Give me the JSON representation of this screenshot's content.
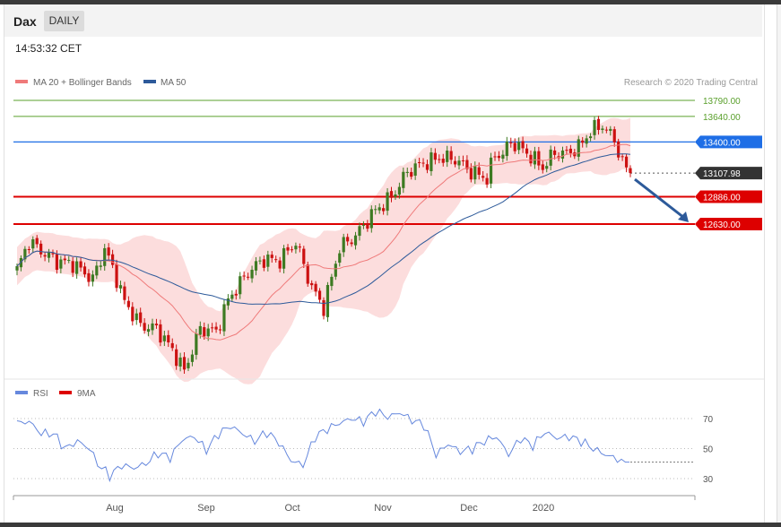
{
  "header": {
    "title": "Dax",
    "period": "DAILY",
    "time": "14:53:32 CET"
  },
  "colors": {
    "resistance_green": "#5aa02c",
    "pivot_blue": "#1e6ee6",
    "support_red": "#dd0000",
    "current_dark": "#333333",
    "candle_up": "#3d7a22",
    "candle_down": "#cc1111",
    "bollinger_fill": "#fcd7d7",
    "ma20": "#ef7a7a",
    "ma50": "#2d5a9a",
    "rsi": "#6688dd",
    "arrow": "#2d5a9a"
  },
  "legend": {
    "ma20": "MA 20 + Bollinger Bands",
    "ma50": "MA 50",
    "rsi": "RSI",
    "rsi_ma": "9MA",
    "credit": "Research © 2020 Trading Central"
  },
  "chart_data": [
    {
      "type": "candlestick",
      "x_labels": [
        "Aug",
        "Sep",
        "Oct",
        "Nov",
        "Dec",
        "2020"
      ],
      "ylim": [
        11100,
        14000
      ],
      "levels": [
        {
          "value": 13790,
          "label": "13790.00",
          "kind": "resistance"
        },
        {
          "value": 13640,
          "label": "13640.00",
          "kind": "resistance"
        },
        {
          "value": 13400,
          "label": "13400.00",
          "kind": "pivot"
        },
        {
          "value": 13107.98,
          "label": "13107.98",
          "kind": "current"
        },
        {
          "value": 12886,
          "label": "12886.00",
          "kind": "support"
        },
        {
          "value": 12630,
          "label": "12630.00",
          "kind": "support"
        }
      ],
      "close_profile": [
        [
          0,
          12200
        ],
        [
          3,
          12470
        ],
        [
          6,
          12380
        ],
        [
          10,
          12280
        ],
        [
          14,
          12260
        ],
        [
          19,
          12110
        ],
        [
          22,
          12400
        ],
        [
          25,
          12120
        ],
        [
          27,
          11900
        ],
        [
          31,
          11680
        ],
        [
          35,
          11650
        ],
        [
          39,
          11450
        ],
        [
          42,
          11250
        ],
        [
          46,
          11650
        ],
        [
          50,
          11620
        ],
        [
          53,
          11920
        ],
        [
          58,
          12180
        ],
        [
          62,
          12300
        ],
        [
          66,
          12290
        ],
        [
          70,
          12460
        ],
        [
          74,
          12030
        ],
        [
          77,
          11850
        ],
        [
          81,
          12410
        ],
        [
          85,
          12520
        ],
        [
          90,
          12760
        ],
        [
          94,
          12880
        ],
        [
          98,
          13120
        ],
        [
          102,
          13200
        ],
        [
          106,
          13250
        ],
        [
          110,
          13240
        ],
        [
          114,
          13120
        ],
        [
          118,
          13060
        ],
        [
          120,
          13280
        ],
        [
          122,
          13290
        ],
        [
          124,
          13400
        ],
        [
          128,
          13300
        ],
        [
          132,
          13160
        ],
        [
          135,
          13300
        ],
        [
          138,
          13290
        ],
        [
          141,
          13350
        ],
        [
          144,
          13500
        ],
        [
          147,
          13560
        ],
        [
          150,
          13420
        ],
        [
          152,
          13200
        ],
        [
          154,
          13108
        ]
      ],
      "arrow": {
        "from": 13050,
        "to": 12630
      }
    },
    {
      "type": "line",
      "name": "RSI",
      "ylim": [
        25,
        80
      ],
      "ticks": [
        30,
        50,
        70
      ],
      "points": [
        [
          0,
          67
        ],
        [
          3,
          68
        ],
        [
          6,
          60
        ],
        [
          9,
          60
        ],
        [
          12,
          50
        ],
        [
          15,
          55
        ],
        [
          18,
          50
        ],
        [
          20,
          40
        ],
        [
          23,
          32
        ],
        [
          26,
          39
        ],
        [
          29,
          37
        ],
        [
          32,
          40
        ],
        [
          35,
          47
        ],
        [
          38,
          44
        ],
        [
          41,
          56
        ],
        [
          44,
          58
        ],
        [
          47,
          49
        ],
        [
          50,
          60
        ],
        [
          53,
          65
        ],
        [
          56,
          60
        ],
        [
          59,
          55
        ],
        [
          62,
          61
        ],
        [
          65,
          54
        ],
        [
          68,
          42
        ],
        [
          71,
          39
        ],
        [
          74,
          58
        ],
        [
          77,
          63
        ],
        [
          80,
          67
        ],
        [
          83,
          70
        ],
        [
          86,
          68
        ],
        [
          89,
          75
        ],
        [
          92,
          71
        ],
        [
          95,
          74
        ],
        [
          98,
          69
        ],
        [
          101,
          66
        ],
        [
          104,
          46
        ],
        [
          107,
          53
        ],
        [
          110,
          48
        ],
        [
          113,
          50
        ],
        [
          116,
          55
        ],
        [
          119,
          58
        ],
        [
          122,
          46
        ],
        [
          125,
          57
        ],
        [
          128,
          52
        ],
        [
          131,
          61
        ],
        [
          134,
          57
        ],
        [
          137,
          58
        ],
        [
          140,
          55
        ],
        [
          143,
          50
        ],
        [
          146,
          46
        ],
        [
          149,
          43
        ],
        [
          151,
          41
        ],
        [
          152,
          41
        ]
      ],
      "current": 41
    }
  ]
}
